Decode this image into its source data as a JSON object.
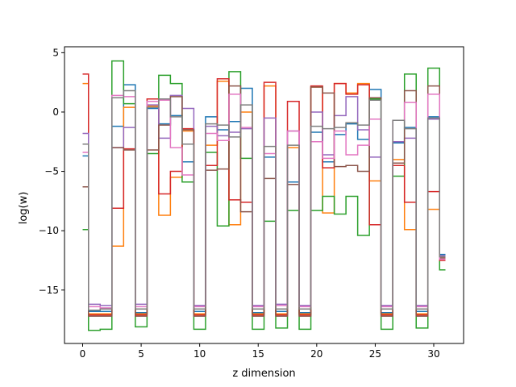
{
  "chart_data": {
    "type": "line",
    "drawstyle": "steps-mid",
    "title": "",
    "xlabel": "z dimension",
    "ylabel": "log(w)",
    "xlim": [
      -1.55,
      32.55
    ],
    "ylim": [
      -19.5,
      5.5
    ],
    "xticks": [
      0,
      5,
      10,
      15,
      20,
      25,
      30
    ],
    "yticks": [
      -15,
      -10,
      -5,
      0,
      5
    ],
    "grid": false,
    "legend": "none",
    "x": [
      0,
      1,
      2,
      3,
      4,
      5,
      6,
      7,
      8,
      9,
      10,
      11,
      12,
      13,
      14,
      15,
      16,
      17,
      18,
      19,
      20,
      21,
      22,
      23,
      24,
      25,
      26,
      27,
      28,
      29,
      30,
      31
    ],
    "series": [
      {
        "color": "#1f77b4",
        "values": [
          -3.7,
          -16.8,
          -16.8,
          -1.2,
          2.3,
          -16.9,
          0.3,
          -1.0,
          -0.3,
          -4.2,
          -16.8,
          -0.4,
          -1.5,
          -0.8,
          2.0,
          -16.9,
          -3.8,
          -16.8,
          -5.9,
          -16.9,
          -1.7,
          -4.2,
          -1.9,
          -1.0,
          -2.3,
          1.9,
          -16.9,
          -2.6,
          -1.3,
          -16.8,
          -0.4,
          -12.0
        ]
      },
      {
        "color": "#ff7f0e",
        "values": [
          2.4,
          -17.0,
          -17.0,
          -11.3,
          0.4,
          -17.0,
          0.5,
          -8.7,
          -5.5,
          -1.6,
          -17.0,
          -2.8,
          2.6,
          -9.5,
          0.0,
          -17.0,
          2.2,
          -17.0,
          -3.0,
          -17.0,
          2.1,
          -8.5,
          2.4,
          1.6,
          2.4,
          -5.8,
          -17.0,
          -4.0,
          -9.9,
          -17.0,
          -8.2,
          -12.2
        ]
      },
      {
        "color": "#2ca02c",
        "values": [
          -9.9,
          -18.4,
          -18.3,
          4.3,
          0.7,
          -18.1,
          -3.5,
          3.1,
          2.4,
          -5.9,
          -18.3,
          -3.4,
          -9.6,
          3.4,
          -3.9,
          -18.3,
          -9.2,
          -18.2,
          -8.3,
          -18.3,
          -8.3,
          -7.1,
          -8.6,
          -7.1,
          -10.4,
          1.1,
          -18.3,
          -5.4,
          3.2,
          -18.2,
          3.7,
          -13.3
        ]
      },
      {
        "color": "#d62728",
        "values": [
          3.2,
          -17.1,
          -17.1,
          -8.1,
          -3.1,
          -17.1,
          1.1,
          -6.9,
          -5.0,
          -1.4,
          -17.1,
          -4.5,
          2.8,
          -7.4,
          -7.6,
          -17.1,
          2.5,
          -17.1,
          0.9,
          -17.1,
          2.2,
          -4.7,
          2.4,
          1.5,
          2.3,
          -9.5,
          -17.1,
          -4.5,
          -7.6,
          -17.1,
          -6.7,
          -12.5
        ]
      },
      {
        "color": "#9467bd",
        "values": [
          -1.8,
          -16.2,
          -16.3,
          -3.0,
          -1.3,
          -16.2,
          0.6,
          -2.2,
          1.4,
          0.3,
          -16.3,
          -1.2,
          -2.0,
          -1.7,
          -1.4,
          -16.3,
          -0.5,
          -16.2,
          -1.6,
          -16.3,
          0.0,
          -3.6,
          -0.3,
          1.3,
          -1.5,
          -3.8,
          -16.3,
          -2.5,
          -2.2,
          -16.3,
          -0.6,
          -12.1
        ]
      },
      {
        "color": "#8c564b",
        "values": [
          -6.3,
          -17.2,
          -17.2,
          -3.0,
          -3.2,
          -17.2,
          -3.2,
          -1.1,
          1.3,
          -1.5,
          -17.2,
          -4.9,
          -4.8,
          2.2,
          -8.4,
          -17.2,
          -5.6,
          -17.2,
          -6.1,
          -17.2,
          2.1,
          1.6,
          -4.6,
          -4.5,
          -5.0,
          1.2,
          -17.2,
          -4.3,
          1.8,
          -17.2,
          2.2,
          -12.3
        ]
      },
      {
        "color": "#e377c2",
        "values": [
          -3.4,
          -16.4,
          -16.5,
          1.4,
          1.3,
          -16.4,
          0.9,
          1.0,
          -3.0,
          -5.3,
          -16.4,
          -1.8,
          -2.4,
          1.5,
          -1.3,
          -16.4,
          -3.5,
          -16.3,
          -1.6,
          -16.4,
          -2.5,
          -3.9,
          -1.6,
          -3.6,
          -2.8,
          -0.6,
          -16.4,
          -0.7,
          0.8,
          -16.4,
          1.5,
          -12.4
        ]
      },
      {
        "color": "#7f7f7f",
        "values": [
          -2.7,
          -16.7,
          -16.6,
          1.2,
          1.8,
          -16.6,
          0.4,
          1.1,
          -0.4,
          -2.7,
          -16.6,
          -1.0,
          -1.1,
          -2.1,
          0.6,
          -16.6,
          -2.9,
          -16.6,
          -2.8,
          -16.6,
          -1.2,
          -1.4,
          -1.3,
          -0.9,
          -1.1,
          1.0,
          -16.6,
          -0.7,
          -1.4,
          -16.6,
          -0.5,
          -12.2
        ]
      }
    ]
  }
}
